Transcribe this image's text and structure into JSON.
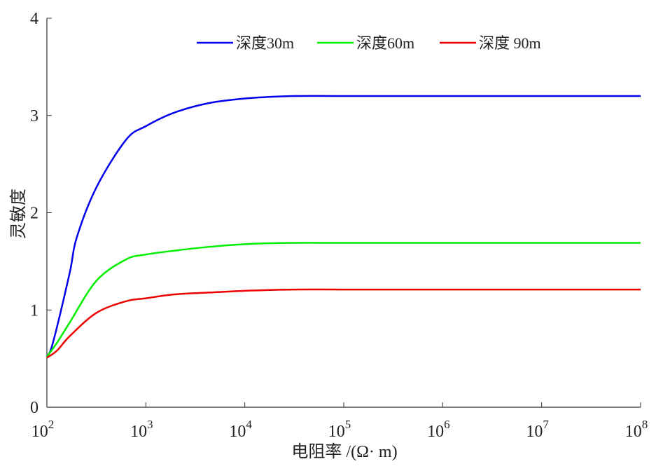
{
  "chart_data": {
    "type": "line",
    "title": "",
    "xlabel": "电阻率 /(Ω· m)",
    "ylabel": "灵敏度",
    "xscale": "log",
    "xlim_log10": [
      2,
      8
    ],
    "ylim": [
      0,
      4
    ],
    "x_ticks": [
      {
        "base": "10",
        "exp": "2",
        "value": 2
      },
      {
        "base": "10",
        "exp": "3",
        "value": 3
      },
      {
        "base": "10",
        "exp": "4",
        "value": 4
      },
      {
        "base": "10",
        "exp": "5",
        "value": 5
      },
      {
        "base": "10",
        "exp": "6",
        "value": 6
      },
      {
        "base": "10",
        "exp": "7",
        "value": 7
      },
      {
        "base": "10",
        "exp": "8",
        "value": 8
      }
    ],
    "y_ticks": [
      "0",
      "1",
      "2",
      "3",
      "4"
    ],
    "grid": false,
    "legend_position": "top-right",
    "series": [
      {
        "name": "深度30m",
        "color": "#0000ee",
        "log10_x": [
          2.0,
          2.06,
          2.23,
          2.3,
          2.5,
          2.8,
          3.0,
          3.29,
          3.65,
          4.07,
          4.5,
          5,
          6,
          7,
          8
        ],
        "y": [
          0.52,
          0.66,
          1.38,
          1.74,
          2.26,
          2.75,
          2.89,
          3.03,
          3.13,
          3.18,
          3.2,
          3.2,
          3.2,
          3.2,
          3.2
        ]
      },
      {
        "name": "深度60m",
        "color": "#00ee00",
        "log10_x": [
          2.0,
          2.1,
          2.23,
          2.5,
          2.8,
          3.0,
          3.29,
          3.65,
          4.07,
          4.5,
          5,
          6,
          7,
          8
        ],
        "y": [
          0.52,
          0.66,
          0.87,
          1.3,
          1.52,
          1.57,
          1.61,
          1.65,
          1.68,
          1.69,
          1.69,
          1.69,
          1.69,
          1.69
        ]
      },
      {
        "name": "深度 90m",
        "color": "#ee0000",
        "log10_x": [
          2.0,
          2.1,
          2.23,
          2.5,
          2.8,
          3.0,
          3.29,
          3.65,
          4.07,
          4.5,
          5,
          6,
          7,
          8
        ],
        "y": [
          0.51,
          0.58,
          0.73,
          0.97,
          1.09,
          1.12,
          1.16,
          1.18,
          1.2,
          1.21,
          1.21,
          1.21,
          1.21,
          1.21
        ]
      }
    ]
  }
}
